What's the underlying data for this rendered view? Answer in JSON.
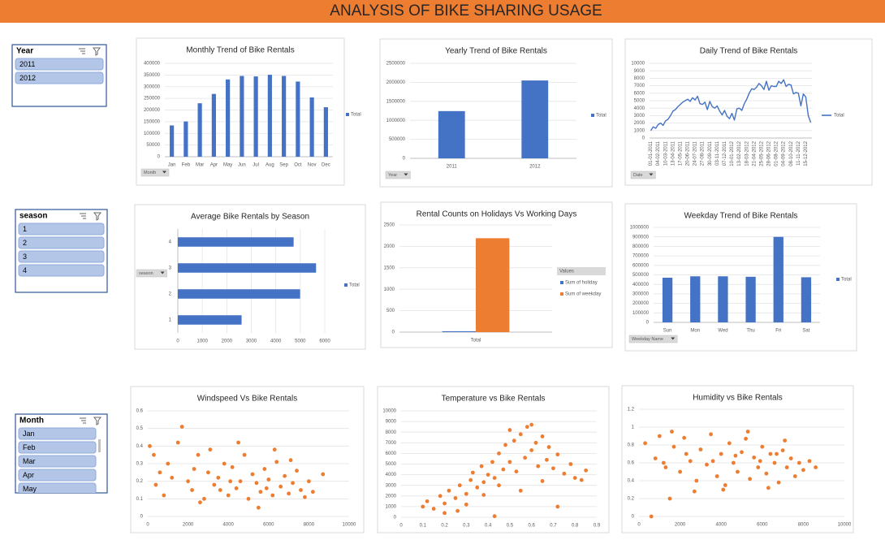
{
  "header": {
    "title": "ANALYSIS OF BIKE SHARING USAGE"
  },
  "slicers": [
    {
      "title": "Year",
      "items": [
        "2011",
        "2012"
      ]
    },
    {
      "title": "season",
      "items": [
        "1",
        "2",
        "3",
        "4"
      ]
    },
    {
      "title": "Month",
      "items": [
        "Jan",
        "Feb",
        "Mar",
        "Apr",
        "May"
      ]
    }
  ],
  "chart_data": [
    {
      "type": "bar",
      "title": "Monthly Trend of Bike Rentals",
      "filter_button": "Month",
      "categories": [
        "Jan",
        "Feb",
        "Mar",
        "Apr",
        "May",
        "Jun",
        "Jul",
        "Aug",
        "Sep",
        "Oct",
        "Nov",
        "Dec"
      ],
      "series": [
        {
          "name": "Total",
          "color": "#4472c4",
          "values": [
            134000,
            151000,
            229000,
            269000,
            331000,
            346000,
            344000,
            351000,
            346000,
            322000,
            254000,
            212000
          ]
        }
      ],
      "ylim": [
        0,
        400000
      ],
      "yticks": [
        0,
        50000,
        100000,
        150000,
        200000,
        250000,
        300000,
        350000,
        400000
      ],
      "grid": true
    },
    {
      "type": "bar",
      "title": "Yearly Trend of Bike Rentals",
      "filter_button": "Year",
      "categories": [
        "2011",
        "2012"
      ],
      "series": [
        {
          "name": "Total",
          "color": "#4472c4",
          "values": [
            1243000,
            2049000
          ]
        }
      ],
      "ylim": [
        0,
        2500000
      ],
      "yticks": [
        0,
        500000,
        1000000,
        1500000,
        2000000,
        2500000
      ],
      "grid": true
    },
    {
      "type": "line",
      "title": "Daily Trend of Bike Rentals",
      "filter_button": "Date",
      "categories": [
        "01-01-2011",
        null,
        null,
        "04-02-2011",
        null,
        null,
        "10-03-2011",
        null,
        null,
        "13-04-2011",
        null,
        null,
        "17-05-2011",
        null,
        null,
        "20-06-2011",
        null,
        null,
        "24-07-2011",
        null,
        null,
        "27-08-2011",
        null,
        null,
        "30-09-2011",
        null,
        null,
        "03-11-2011",
        null,
        null,
        "07-12-2011",
        null,
        null,
        "10-01-2012",
        null,
        null,
        "13-02-2012",
        null,
        null,
        "18-03-2012",
        null,
        null,
        "21-04-2012",
        null,
        null,
        "25-05-2012",
        null,
        null,
        "28-06-2012",
        null,
        null,
        "01-08-2012",
        null,
        null,
        "04-09-2012",
        null,
        null,
        "08-10-2012",
        null,
        null,
        "11-11-2012",
        null,
        null,
        "15-12-2012",
        null,
        null
      ],
      "series": [
        {
          "name": "Total",
          "color": "#4472c4",
          "values": [
            1000,
            1500,
            1300,
            1800,
            2000,
            1700,
            2300,
            2500,
            3000,
            3600,
            3800,
            4200,
            4500,
            4800,
            5000,
            5200,
            4900,
            5400,
            5100,
            5600,
            4600,
            4500,
            4800,
            3800,
            4900,
            4200,
            4000,
            4300,
            3600,
            3100,
            3700,
            2900,
            2600,
            3300,
            2400,
            3900,
            4000,
            3700,
            4600,
            5200,
            6000,
            6600,
            6500,
            6800,
            7300,
            7000,
            6500,
            7600,
            6400,
            7000,
            6900,
            6900,
            7600,
            7300,
            7800,
            6900,
            7200,
            7100,
            5900,
            6100,
            6000,
            4300,
            5900,
            5500,
            3000,
            2100
          ]
        }
      ],
      "ylim": [
        0,
        10000
      ],
      "yticks": [
        0,
        1000,
        2000,
        3000,
        4000,
        5000,
        6000,
        7000,
        8000,
        9000,
        10000
      ],
      "grid": true
    },
    {
      "type": "bar",
      "orientation": "horizontal",
      "title": "Average Bike Rentals by Season",
      "filter_button": "season",
      "categories": [
        "1",
        "2",
        "3",
        "4"
      ],
      "series": [
        {
          "name": "Total",
          "color": "#4472c4",
          "values": [
            2604,
            4992,
            5644,
            4728
          ]
        }
      ],
      "xlim": [
        0,
        6000
      ],
      "xticks": [
        0,
        1000,
        2000,
        3000,
        4000,
        5000,
        6000
      ],
      "grid": true
    },
    {
      "type": "bar",
      "title": "Rental Counts on Holidays Vs Working Days",
      "legend_title": "Values",
      "categories": [
        "Total"
      ],
      "series": [
        {
          "name": "Sum of holiday",
          "color": "#4472c4",
          "values": [
            21
          ]
        },
        {
          "name": "Sum of weekday",
          "color": "#ed7d31",
          "values": [
            2190
          ]
        }
      ],
      "ylim": [
        0,
        2500
      ],
      "yticks": [
        0,
        500,
        1000,
        1500,
        2000,
        2500
      ],
      "grid": true
    },
    {
      "type": "bar",
      "title": "Weekday Trend of Bike Rentals",
      "filter_button": "Weekday Name",
      "categories": [
        "Sun",
        "Mon",
        "Wed",
        "Thu",
        "Fri",
        "Sat"
      ],
      "series": [
        {
          "name": "Total",
          "color": "#4472c4",
          "values": [
            470000,
            485000,
            485000,
            480000,
            900000,
            475000
          ]
        }
      ],
      "ylim": [
        0,
        1000000
      ],
      "yticks": [
        0,
        100000,
        200000,
        300000,
        400000,
        500000,
        600000,
        700000,
        800000,
        900000,
        1000000
      ],
      "grid": true
    },
    {
      "type": "scatter",
      "title": "Windspeed Vs Bike Rentals",
      "color": "#ed7d31",
      "x": [
        1000,
        1500,
        1700,
        2000,
        2200,
        2500,
        2800,
        3000,
        3300,
        3500,
        3800,
        4000,
        4200,
        4400,
        4600,
        4800,
        5000,
        5200,
        5400,
        5600,
        5800,
        6000,
        6200,
        6400,
        6600,
        6800,
        7000,
        7200,
        7400,
        7600,
        7800,
        8000,
        8200,
        8700,
        400,
        600,
        800,
        1200,
        300,
        100,
        2600,
        3100,
        4500,
        5500,
        6300,
        7100,
        4100,
        3600,
        2300,
        5900
      ],
      "values": [
        0.3,
        0.42,
        0.51,
        0.2,
        0.15,
        0.35,
        0.1,
        0.25,
        0.18,
        0.22,
        0.3,
        0.12,
        0.28,
        0.16,
        0.2,
        0.35,
        0.1,
        0.24,
        0.19,
        0.14,
        0.27,
        0.21,
        0.12,
        0.31,
        0.17,
        0.23,
        0.13,
        0.19,
        0.26,
        0.15,
        0.11,
        0.2,
        0.14,
        0.24,
        0.18,
        0.25,
        0.12,
        0.22,
        0.35,
        0.4,
        0.08,
        0.38,
        0.42,
        0.05,
        0.38,
        0.32,
        0.2,
        0.15,
        0.27,
        0.16
      ],
      "xlim": [
        0,
        10000
      ],
      "xticks": [
        0,
        2000,
        4000,
        6000,
        8000,
        10000
      ],
      "ylim": [
        0,
        0.6
      ],
      "yticks": [
        0,
        0.1,
        0.2,
        0.3,
        0.4,
        0.5,
        0.6
      ],
      "grid": true
    },
    {
      "type": "scatter",
      "title": "Temperature vs Bike Rentals",
      "color": "#ed7d31",
      "x": [
        0.1,
        0.12,
        0.15,
        0.18,
        0.2,
        0.22,
        0.25,
        0.27,
        0.3,
        0.32,
        0.33,
        0.35,
        0.37,
        0.38,
        0.4,
        0.42,
        0.43,
        0.45,
        0.47,
        0.48,
        0.5,
        0.52,
        0.53,
        0.55,
        0.57,
        0.58,
        0.6,
        0.62,
        0.63,
        0.65,
        0.67,
        0.68,
        0.7,
        0.72,
        0.75,
        0.78,
        0.8,
        0.83,
        0.85,
        0.43,
        0.2,
        0.3,
        0.38,
        0.55,
        0.65,
        0.72,
        0.5,
        0.6,
        0.26,
        0.45
      ],
      "values": [
        1000,
        1500,
        800,
        2000,
        1300,
        2500,
        1800,
        3000,
        2200,
        3500,
        4200,
        2800,
        4800,
        3300,
        4000,
        5200,
        3700,
        6000,
        4500,
        6800,
        5200,
        7200,
        4300,
        7800,
        5600,
        8500,
        6300,
        7000,
        4800,
        7600,
        5400,
        6600,
        4600,
        5900,
        4100,
        5000,
        3700,
        3500,
        4400,
        100,
        400,
        1200,
        2100,
        2500,
        3400,
        1000,
        8200,
        8700,
        600,
        3000
      ],
      "xlim": [
        0,
        0.9
      ],
      "xticks": [
        0,
        0.1,
        0.2,
        0.3,
        0.4,
        0.5,
        0.6,
        0.7,
        0.8,
        0.9
      ],
      "ylim": [
        0,
        10000
      ],
      "yticks": [
        0,
        1000,
        2000,
        3000,
        4000,
        5000,
        6000,
        7000,
        8000,
        9000,
        10000
      ],
      "grid": true
    },
    {
      "type": "scatter",
      "title": "Humidity vs Bike Rentals",
      "color": "#ed7d31",
      "x": [
        600,
        300,
        800,
        1000,
        1300,
        1500,
        1700,
        2000,
        2200,
        2500,
        2800,
        3000,
        3300,
        3500,
        3800,
        4000,
        4200,
        4400,
        4600,
        4800,
        5000,
        5200,
        5400,
        5600,
        5800,
        6000,
        6200,
        6400,
        6600,
        6800,
        7000,
        7200,
        7400,
        7600,
        7800,
        8000,
        8300,
        8600,
        1600,
        2700,
        4100,
        5300,
        6300,
        7100,
        3600,
        4700,
        5900,
        6700,
        2300,
        1200
      ],
      "values": [
        0,
        0.82,
        0.65,
        0.9,
        0.55,
        0.2,
        0.78,
        0.5,
        0.88,
        0.62,
        0.4,
        0.75,
        0.58,
        0.92,
        0.45,
        0.7,
        0.35,
        0.82,
        0.6,
        0.5,
        0.72,
        0.87,
        0.42,
        0.66,
        0.55,
        0.78,
        0.48,
        0.7,
        0.6,
        0.38,
        0.74,
        0.55,
        0.65,
        0.45,
        0.6,
        0.52,
        0.62,
        0.55,
        0.95,
        0.28,
        0.3,
        0.95,
        0.32,
        0.85,
        0.62,
        0.68,
        0.62,
        0.7,
        0.7,
        0.6
      ],
      "xlim": [
        0,
        10000
      ],
      "xticks": [
        0,
        2000,
        4000,
        6000,
        8000,
        10000
      ],
      "ylim": [
        0,
        1.2
      ],
      "yticks": [
        0,
        0.2,
        0.4,
        0.6,
        0.8,
        1,
        1.2
      ],
      "grid": true
    }
  ]
}
